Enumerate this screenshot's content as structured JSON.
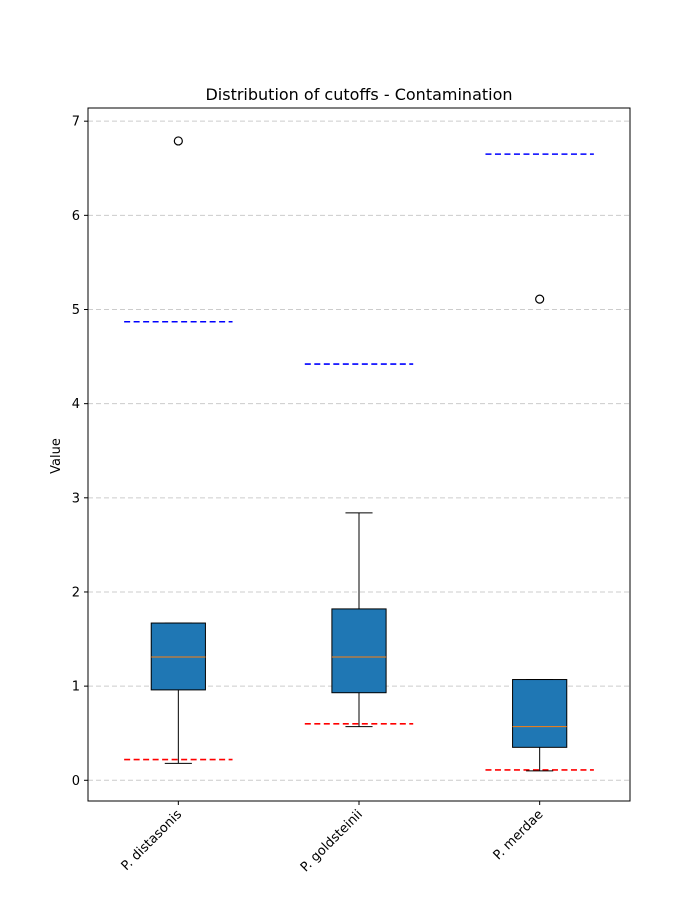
{
  "chart_data": {
    "type": "box",
    "title": "Distribution of cutoffs - Contamination",
    "xlabel": "",
    "ylabel": "Value",
    "ylim": [
      -0.22,
      7.14
    ],
    "yticks": [
      0,
      1,
      2,
      3,
      4,
      5,
      6,
      7
    ],
    "grid": "y-dashed",
    "categories": [
      "P. distasonis",
      "P. goldsteinii",
      "P. merdae"
    ],
    "boxes": [
      {
        "category": "P. distasonis",
        "whisker_low": 0.18,
        "q1": 0.96,
        "median": 1.31,
        "q3": 1.67,
        "whisker_high": 1.67,
        "outliers": [
          6.79
        ]
      },
      {
        "category": "P. goldsteinii",
        "whisker_low": 0.57,
        "q1": 0.93,
        "median": 1.31,
        "q3": 1.82,
        "whisker_high": 2.84,
        "outliers": []
      },
      {
        "category": "P. merdae",
        "whisker_low": 0.1,
        "q1": 0.35,
        "median": 0.57,
        "q3": 1.07,
        "whisker_high": 1.07,
        "outliers": [
          5.11
        ]
      }
    ],
    "reference_lines": [
      {
        "category": "P. distasonis",
        "upper": 4.87,
        "lower": 0.22
      },
      {
        "category": "P. goldsteinii",
        "upper": 4.42,
        "lower": 0.6
      },
      {
        "category": "P. merdae",
        "upper": 6.65,
        "lower": 0.11
      }
    ],
    "colors": {
      "box_fill": "#1f77b4",
      "median": "#ff7f0e",
      "upper_line": "#0000ff",
      "lower_line": "#ff0000",
      "grid": "#cccccc"
    }
  }
}
